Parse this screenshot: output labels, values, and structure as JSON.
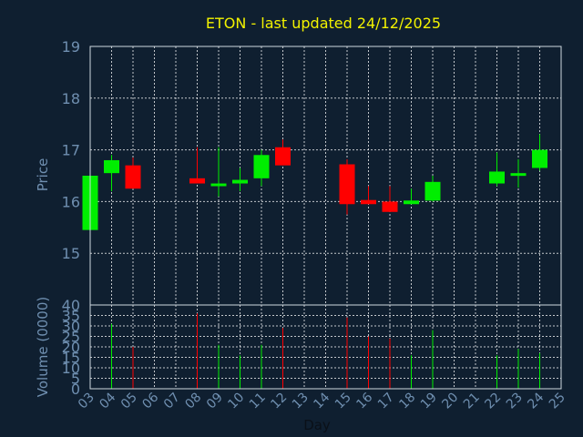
{
  "chart_data": {
    "type": "candlestick",
    "title": "ETON - last updated 24/12/2025",
    "colors": {
      "background": "#0f1f30",
      "up": "#00ee00",
      "down": "#ff0000",
      "title": "#f2f200",
      "axis_text": "#6f8fb0",
      "grid": "#ffffff"
    },
    "price_panel": {
      "ylabel": "Price",
      "ylim": [
        14,
        19
      ],
      "yticks": [
        "15",
        "16",
        "17",
        "18",
        "19"
      ]
    },
    "volume_panel": {
      "ylabel": "Volume (0000)",
      "ylim": [
        0,
        40
      ],
      "yticks": [
        "0",
        "5",
        "10",
        "15",
        "20",
        "25",
        "30",
        "35",
        "40"
      ]
    },
    "xlabel": "Day",
    "x_ticks": [
      "03",
      "04",
      "05",
      "06",
      "07",
      "08",
      "09",
      "10",
      "11",
      "12",
      "13",
      "14",
      "15",
      "16",
      "17",
      "18",
      "19",
      "20",
      "21",
      "22",
      "23",
      "24",
      "25"
    ],
    "candles": [
      {
        "day": "03",
        "open": 15.45,
        "close": 16.5,
        "high": 16.5,
        "low": 15.45,
        "volume": 0
      },
      {
        "day": "04",
        "open": 16.55,
        "close": 16.8,
        "high": 16.9,
        "low": 16.2,
        "volume": 31
      },
      {
        "day": "05",
        "open": 16.7,
        "close": 16.25,
        "high": 16.85,
        "low": 16.25,
        "volume": 20
      },
      {
        "day": "08",
        "open": 16.45,
        "close": 16.35,
        "high": 17.05,
        "low": 16.35,
        "volume": 36
      },
      {
        "day": "09",
        "open": 16.32,
        "close": 16.35,
        "high": 17.05,
        "low": 16.1,
        "volume": 21
      },
      {
        "day": "10",
        "open": 16.35,
        "close": 16.42,
        "high": 16.65,
        "low": 16.2,
        "volume": 16
      },
      {
        "day": "11",
        "open": 16.45,
        "close": 16.9,
        "high": 17.0,
        "low": 16.3,
        "volume": 21
      },
      {
        "day": "12",
        "open": 17.05,
        "close": 16.7,
        "high": 17.2,
        "low": 16.7,
        "volume": 29
      },
      {
        "day": "15",
        "open": 16.72,
        "close": 15.95,
        "high": 16.82,
        "low": 15.75,
        "volume": 34
      },
      {
        "day": "16",
        "open": 16.03,
        "close": 15.95,
        "high": 16.3,
        "low": 15.95,
        "volume": 25
      },
      {
        "day": "17",
        "open": 16.0,
        "close": 15.8,
        "high": 16.3,
        "low": 15.8,
        "volume": 24
      },
      {
        "day": "18",
        "open": 15.95,
        "close": 16.02,
        "high": 16.25,
        "low": 15.95,
        "volume": 16
      },
      {
        "day": "19",
        "open": 16.02,
        "close": 16.38,
        "high": 16.5,
        "low": 16.0,
        "volume": 28
      },
      {
        "day": "22",
        "open": 16.35,
        "close": 16.58,
        "high": 16.95,
        "low": 16.3,
        "volume": 16
      },
      {
        "day": "23",
        "open": 16.5,
        "close": 16.55,
        "high": 16.82,
        "low": 16.27,
        "volume": 19
      },
      {
        "day": "24",
        "open": 16.65,
        "close": 17.0,
        "high": 17.3,
        "low": 16.6,
        "volume": 17
      }
    ]
  }
}
